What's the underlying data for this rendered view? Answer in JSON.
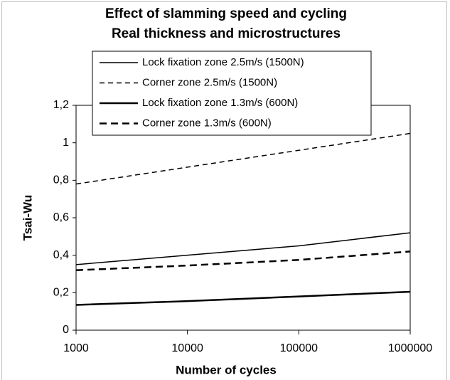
{
  "chart_data": {
    "type": "line",
    "title": "Effect of slamming speed and cycling",
    "subtitle": "Real thickness and microstructures",
    "x_label": "Number of cycles",
    "y_label": "Tsai-Wu",
    "x": [
      1000,
      10000,
      100000,
      1000000
    ],
    "xscale": "log",
    "xlim": [
      1000,
      1000000
    ],
    "xticks": [
      1000,
      10000,
      100000,
      1000000
    ],
    "ylim": [
      0,
      1.2
    ],
    "yticks": [
      0,
      {
        "value": 0.2,
        "label": "0,2"
      },
      {
        "value": 0.4,
        "label": "0,4"
      },
      {
        "value": 0.6,
        "label": "0,6"
      },
      {
        "value": 0.8,
        "label": "0,8"
      },
      1,
      {
        "value": 1.2,
        "label": "1,2"
      }
    ],
    "grid": false,
    "legend": "top",
    "series": [
      {
        "name": "Lock fixation zone 2.5m/s (1500N)",
        "color": "#000000",
        "style": "solid",
        "line_width": 1.5,
        "values": [
          0.35,
          0.4,
          0.45,
          0.52
        ]
      },
      {
        "name": "Corner zone 2.5m/s (1500N)",
        "color": "#000000",
        "style": "dashed",
        "line_width": 1.5,
        "values": [
          0.78,
          0.87,
          0.96,
          1.05
        ]
      },
      {
        "name": "Lock fixation zone 1.3m/s (600N)",
        "color": "#000000",
        "style": "solid",
        "line_width": 2.5,
        "values": [
          0.135,
          0.155,
          0.18,
          0.205
        ]
      },
      {
        "name": "Corner zone 1.3m/s (600N)",
        "color": "#000000",
        "style": "dashed",
        "line_width": 2.5,
        "values": [
          0.32,
          0.345,
          0.375,
          0.42
        ]
      }
    ]
  }
}
